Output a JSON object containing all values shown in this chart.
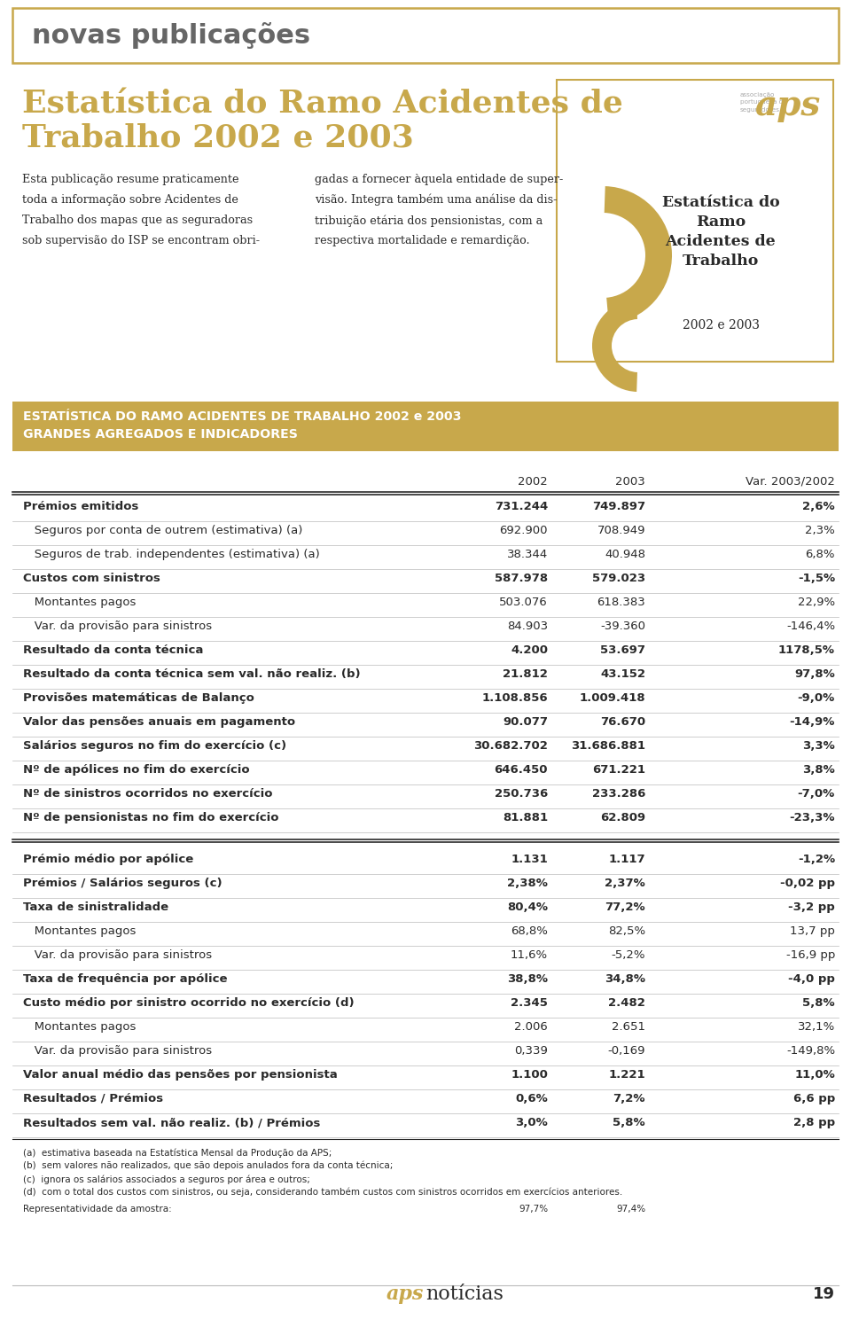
{
  "page_bg": "#ffffff",
  "header_border_color": "#c8a84b",
  "header_text": "novas publicações",
  "header_text_color": "#5a5a5a",
  "title_text_line1": "Estatística do Ramo Acidentes de",
  "title_text_line2": "Trabalho 2002 e 2003",
  "title_color": "#c8a84b",
  "body_text_left": [
    "Esta publicação resume praticamente",
    "toda a informação sobre Acidentes de",
    "Trabalho dos mapas que as seguradoras",
    "sob supervisão do ISP se encontram obri-"
  ],
  "body_text_right": [
    "gadas a fornecer àquela entidade de super-",
    "visão. Integra também uma análise da dis-",
    "tribuição etária dos pensionistas, com a",
    "respectiva mortalidade e remardição."
  ],
  "book_title_lines": [
    "Estatística do",
    "Ramo",
    "Acidentes de",
    "Trabalho"
  ],
  "book_year": "2002 e 2003",
  "book_border_color": "#c8a84b",
  "table_header_line1": "ESTATÍSTICA DO RAMO ACIDENTES DE TRABALHO 2002 e 2003",
  "table_header_line2": "GRANDES AGREGADOS E INDICADORES",
  "col_headers": [
    "2002",
    "2003",
    "Var. 2003/2002"
  ],
  "rows": [
    {
      "label": "Prémios emitidos",
      "v2002": "731.244",
      "v2003": "749.897",
      "var": "2,6%",
      "bold": true
    },
    {
      "label": "   Seguros por conta de outrem (estimativa) (a)",
      "v2002": "692.900",
      "v2003": "708.949",
      "var": "2,3%",
      "bold": false
    },
    {
      "label": "   Seguros de trab. independentes (estimativa) (a)",
      "v2002": "38.344",
      "v2003": "40.948",
      "var": "6,8%",
      "bold": false
    },
    {
      "label": "Custos com sinistros",
      "v2002": "587.978",
      "v2003": "579.023",
      "var": "-1,5%",
      "bold": true
    },
    {
      "label": "   Montantes pagos",
      "v2002": "503.076",
      "v2003": "618.383",
      "var": "22,9%",
      "bold": false
    },
    {
      "label": "   Var. da provisão para sinistros",
      "v2002": "84.903",
      "v2003": "-39.360",
      "var": "-146,4%",
      "bold": false
    },
    {
      "label": "Resultado da conta técnica",
      "v2002": "4.200",
      "v2003": "53.697",
      "var": "1178,5%",
      "bold": true
    },
    {
      "label": "Resultado da conta técnica sem val. não realiz. (b)",
      "v2002": "21.812",
      "v2003": "43.152",
      "var": "97,8%",
      "bold": true
    },
    {
      "label": "Provisões matemáticas de Balanço",
      "v2002": "1.108.856",
      "v2003": "1.009.418",
      "var": "-9,0%",
      "bold": true
    },
    {
      "label": "Valor das pensões anuais em pagamento",
      "v2002": "90.077",
      "v2003": "76.670",
      "var": "-14,9%",
      "bold": true
    },
    {
      "label": "Salários seguros no fim do exercício (c)",
      "v2002": "30.682.702",
      "v2003": "31.686.881",
      "var": "3,3%",
      "bold": true
    },
    {
      "label": "Nº de apólices no fim do exercício",
      "v2002": "646.450",
      "v2003": "671.221",
      "var": "3,8%",
      "bold": true
    },
    {
      "label": "Nº de sinistros ocorridos no exercício",
      "v2002": "250.736",
      "v2003": "233.286",
      "var": "-7,0%",
      "bold": true
    },
    {
      "label": "Nº de pensionistas no fim do exercício",
      "v2002": "81.881",
      "v2003": "62.809",
      "var": "-23,3%",
      "bold": true
    }
  ],
  "rows2": [
    {
      "label": "Prémio médio por apólice",
      "v2002": "1.131",
      "v2003": "1.117",
      "var": "-1,2%",
      "bold": true
    },
    {
      "label": "Prémios / Salários seguros (c)",
      "v2002": "2,38%",
      "v2003": "2,37%",
      "var": "-0,02 pp",
      "bold": true
    },
    {
      "label": "Taxa de sinistralidade",
      "v2002": "80,4%",
      "v2003": "77,2%",
      "var": "-3,2 pp",
      "bold": true
    },
    {
      "label": "   Montantes pagos",
      "v2002": "68,8%",
      "v2003": "82,5%",
      "var": "13,7 pp",
      "bold": false
    },
    {
      "label": "   Var. da provisão para sinistros",
      "v2002": "11,6%",
      "v2003": "-5,2%",
      "var": "-16,9 pp",
      "bold": false
    },
    {
      "label": "Taxa de frequência por apólice",
      "v2002": "38,8%",
      "v2003": "34,8%",
      "var": "-4,0 pp",
      "bold": true
    },
    {
      "label": "Custo médio por sinistro ocorrido no exercício (d)",
      "v2002": "2.345",
      "v2003": "2.482",
      "var": "5,8%",
      "bold": true
    },
    {
      "label": "   Montantes pagos",
      "v2002": "2.006",
      "v2003": "2.651",
      "var": "32,1%",
      "bold": false
    },
    {
      "label": "   Var. da provisão para sinistros",
      "v2002": "0,339",
      "v2003": "-0,169",
      "var": "-149,8%",
      "bold": false
    },
    {
      "label": "Valor anual médio das pensões por pensionista",
      "v2002": "1.100",
      "v2003": "1.221",
      "var": "11,0%",
      "bold": true
    },
    {
      "label": "Resultados / Prémios",
      "v2002": "0,6%",
      "v2003": "7,2%",
      "var": "6,6 pp",
      "bold": true
    },
    {
      "label": "Resultados sem val. não realiz. (b) / Prémios",
      "v2002": "3,0%",
      "v2003": "5,8%",
      "var": "2,8 pp",
      "bold": true
    }
  ],
  "footnotes": [
    "(a)  estimativa baseada na Estatística Mensal da Produção da APS;",
    "(b)  sem valores não realizados, que são depois anulados fora da conta técnica;",
    "(c)  ignora os salários associados a seguros por área e outros;",
    "(d)  com o total dos custos com sinistros, ou seja, considerando também custos com sinistros ocorridos em exercícios anteriores."
  ],
  "repres_label": "Representatividade da amostra:",
  "repres_2002": "97,7%",
  "repres_2003": "97,4%",
  "footer_page": "19",
  "gold": "#c8a84b",
  "dark": "#2a2a2a",
  "light_sep": "#bbbbbb"
}
